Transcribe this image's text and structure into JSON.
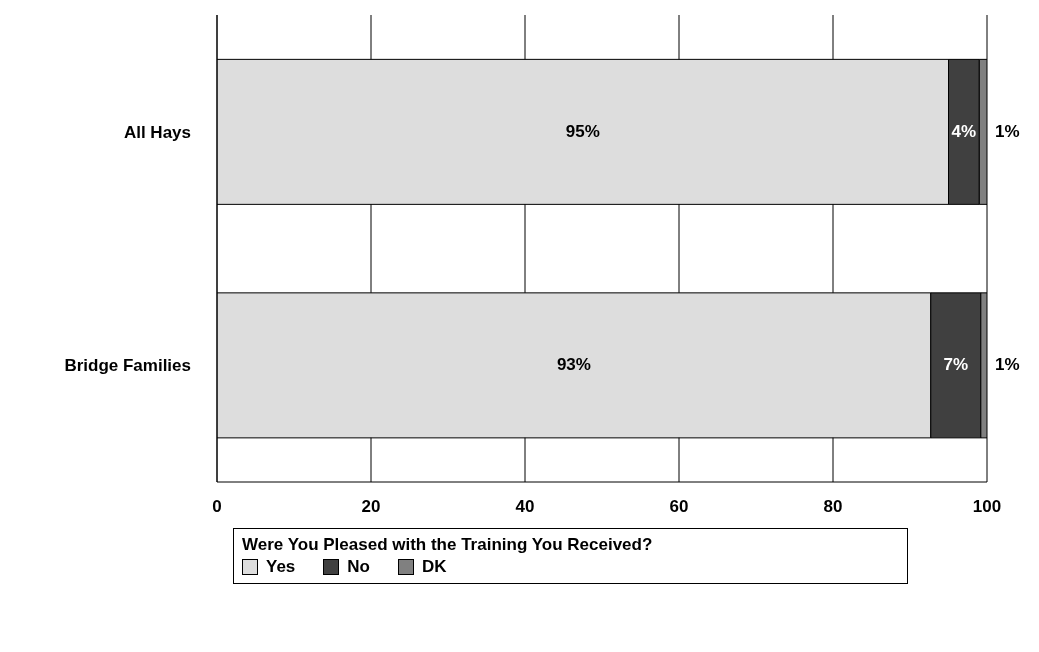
{
  "chart_data": {
    "type": "bar",
    "orientation": "horizontal",
    "stacked": true,
    "categories": [
      "All Hays",
      "Bridge Families"
    ],
    "series": [
      {
        "name": "Yes",
        "color": "#dddddd",
        "values": [
          95,
          92.7
        ],
        "value_labels": [
          "95%",
          "93%"
        ]
      },
      {
        "name": "No",
        "color": "#404040",
        "values": [
          4,
          6.5
        ],
        "value_labels": [
          "4%",
          "7%"
        ]
      },
      {
        "name": "DK",
        "color": "#808080",
        "values": [
          1,
          0.8
        ],
        "value_labels": [
          "1%",
          "1%"
        ]
      }
    ],
    "xlim": [
      0,
      100
    ],
    "xticks": [
      0,
      20,
      40,
      60,
      80,
      100
    ],
    "grid": "x",
    "legend": "bottom",
    "legend_title": "Were You Pleased with the Training You Received?"
  }
}
